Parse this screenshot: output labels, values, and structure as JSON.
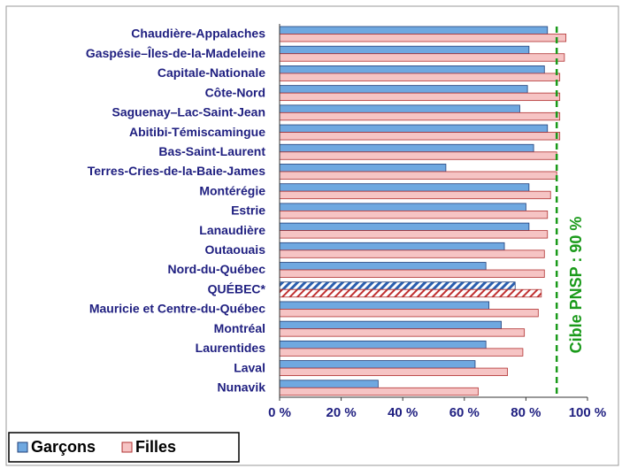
{
  "chart_data": {
    "type": "hbar",
    "categories": [
      "Chaudière-Appalaches",
      "Gaspésie–Îles-de-la-Madeleine",
      "Capitale-Nationale",
      "Côte-Nord",
      "Saguenay–Lac-Saint-Jean",
      "Abitibi-Témiscamingue",
      "Bas-Saint-Laurent",
      "Terres-Cries-de-la-Baie-James",
      "Montérégie",
      "Estrie",
      "Lanaudière",
      "Outaouais",
      "Nord-du-Québec",
      "QUÉBEC*",
      "Mauricie et Centre-du-Québec",
      "Montréal",
      "Laurentides",
      "Laval",
      "Nunavik"
    ],
    "series": [
      {
        "name": "Garçons",
        "color": "#6fa8e0",
        "edge": "#1f3f7a",
        "values": [
          87,
          81,
          86,
          80.5,
          78,
          87,
          82.5,
          54,
          81,
          80,
          81,
          73,
          67,
          76.5,
          68,
          72,
          67,
          63.5,
          32
        ]
      },
      {
        "name": "Filles",
        "color": "#f6c4c4",
        "edge": "#b03030",
        "values": [
          93,
          92.5,
          91,
          91,
          91,
          91,
          90,
          90,
          88,
          87,
          87,
          86,
          86,
          85,
          84,
          79.5,
          79,
          74,
          64.5
        ]
      }
    ],
    "hatched_index": 13,
    "xlim": [
      0,
      100
    ],
    "xticks": [
      {
        "value": 0,
        "label": "0 %"
      },
      {
        "value": 20,
        "label": "20 %"
      },
      {
        "value": 40,
        "label": "40 %"
      },
      {
        "value": 60,
        "label": "60 %"
      },
      {
        "value": 80,
        "label": "80 %"
      },
      {
        "value": 100,
        "label": "100 %"
      }
    ],
    "target": {
      "value": 90,
      "label": "Cible PNSP : 90 %",
      "color": "#1a9a1a"
    },
    "legend": "bottom-left"
  }
}
